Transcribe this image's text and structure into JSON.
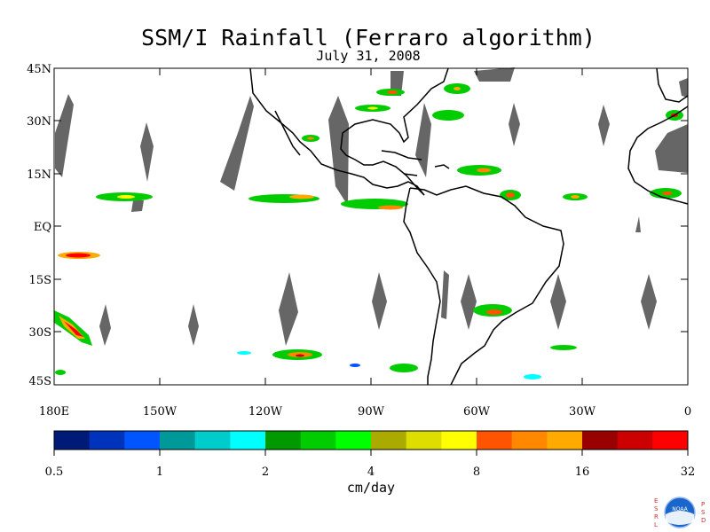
{
  "title": "SSM/I Rainfall (Ferraro algorithm)",
  "subtitle": "July 31, 2008",
  "map": {
    "lat_labels": [
      "45N",
      "30N",
      "15N",
      "EQ",
      "15S",
      "30S",
      "45S"
    ],
    "lon_labels": [
      "180E",
      "150W",
      "120W",
      "90W",
      "60W",
      "30W",
      "0"
    ],
    "land_outline_color": "#000000",
    "no_data_color": "#666666"
  },
  "colorbar": {
    "colors": [
      "#001a77",
      "#0033bb",
      "#0055ff",
      "#00999a",
      "#00cccc",
      "#00ffff",
      "#009900",
      "#00cc00",
      "#00ff00",
      "#aaaa00",
      "#dddd00",
      "#ffff00",
      "#ff5500",
      "#ff8800",
      "#ffaa00",
      "#990000",
      "#cc0000",
      "#ff0000"
    ],
    "tick_labels": [
      "0.5",
      "1",
      "2",
      "4",
      "8",
      "16",
      "32"
    ],
    "unit_label": "cm/day"
  },
  "logo": {
    "left_text": "ESRL",
    "right_text": "PSD",
    "badge_text": "NOAA"
  }
}
